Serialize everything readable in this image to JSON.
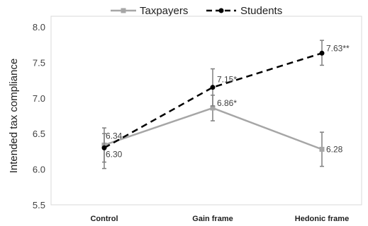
{
  "chart_data": {
    "type": "line",
    "ylabel": "Intended tax compliance",
    "xlabel": "",
    "ylim": [
      5.5,
      8.0
    ],
    "yticks": [
      "5.5",
      "6.0",
      "6.5",
      "7.0",
      "7.5",
      "8.0"
    ],
    "grid": false,
    "legend_position": "top",
    "categories": [
      "Control",
      "Gain frame",
      "Hedonic frame"
    ],
    "series": [
      {
        "name": "Taxpayers",
        "style": "solid",
        "marker": "square",
        "color": "#a6a6a6",
        "values": [
          6.34,
          6.86,
          6.28
        ],
        "error_low": [
          6.1,
          6.68,
          6.04
        ],
        "error_high": [
          6.58,
          7.04,
          6.52
        ],
        "labels": [
          "6.34",
          "6.86*",
          "6.28"
        ]
      },
      {
        "name": "Students",
        "style": "dashed",
        "marker": "circle",
        "color": "#000000",
        "values": [
          6.3,
          7.15,
          7.63
        ],
        "error_low": [
          6.01,
          6.89,
          7.46
        ],
        "error_high": [
          6.5,
          7.41,
          7.81
        ],
        "labels": [
          "6.30",
          "7.15*",
          "7.63**"
        ]
      }
    ]
  }
}
